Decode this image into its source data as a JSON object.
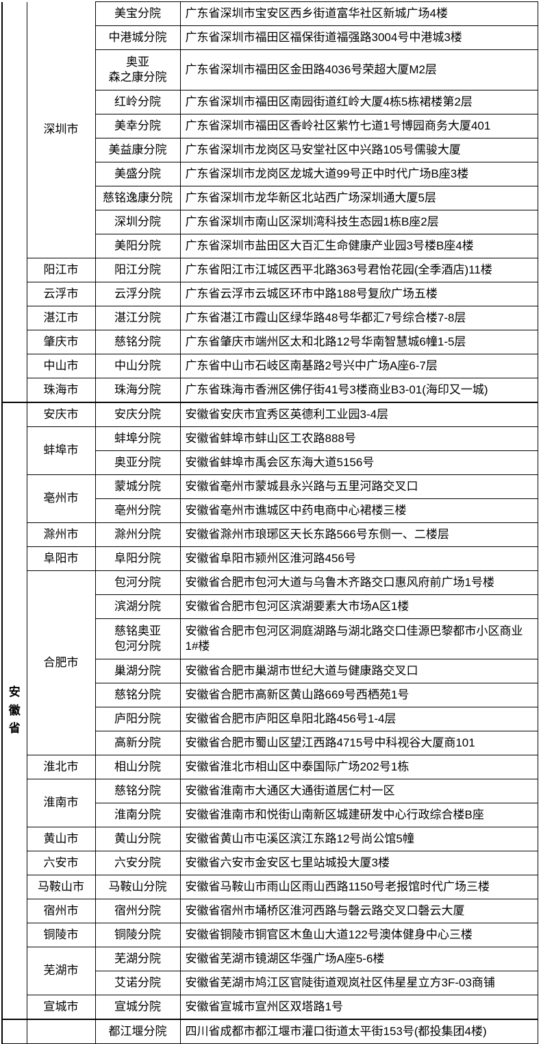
{
  "table": {
    "sections": [
      {
        "province": "",
        "cities": [
          {
            "name": "深圳市",
            "branches": [
              {
                "name": "美宝分院",
                "address": "广东省深圳市宝安区西乡街道富华社区新城广场4楼"
              },
              {
                "name": "中港城分院",
                "address": "广东省深圳市福田区福保街道福强路3004号中港城3楼"
              },
              {
                "name": "奥亚\n森之康分院",
                "address": "广东省深圳市福田区金田路4036号荣超大厦M2层"
              },
              {
                "name": "红岭分院",
                "address": "广东省深圳市福田区南园街道红岭大厦4栋5栋裙楼第2层"
              },
              {
                "name": "美幸分院",
                "address": "广东省深圳市福田区香岭社区紫竹七道1号博园商务大厦401"
              },
              {
                "name": "美益康分院",
                "address": "广东省深圳市龙岗区马安堂社区中兴路105号儒骏大厦"
              },
              {
                "name": "美盛分院",
                "address": "广东省深圳市龙岗区龙城大道99号正中时代广场B座3楼"
              },
              {
                "name": "慈铭逸康分院",
                "address": "广东省深圳市龙华新区北站西广场深圳通大厦5层"
              },
              {
                "name": "深圳分院",
                "address": "广东省深圳市南山区深圳湾科技生态园1栋B座2层"
              },
              {
                "name": "美阳分院",
                "address": "广东省深圳市盐田区大百汇生命健康产业园3号楼B座4楼"
              }
            ]
          },
          {
            "name": "阳江市",
            "branches": [
              {
                "name": "阳江分院",
                "address": "广东省阳江市江城区西平北路363号君怡花园(全季酒店)11楼"
              }
            ]
          },
          {
            "name": "云浮市",
            "branches": [
              {
                "name": "云浮分院",
                "address": "广东省云浮市云城区环市中路188号复欣广场五楼"
              }
            ]
          },
          {
            "name": "湛江市",
            "branches": [
              {
                "name": "湛江分院",
                "address": "广东省湛江市霞山区绿华路48号华都汇7号综合楼7-8层"
              }
            ]
          },
          {
            "name": "肇庆市",
            "branches": [
              {
                "name": "慈铭分院",
                "address": "广东省肇庆市端州区太和北路12号华南智慧城6幢1-5层"
              }
            ]
          },
          {
            "name": "中山市",
            "branches": [
              {
                "name": "中山分院",
                "address": "广东省中山市石岐区南基路2号兴中广场A座6-7层"
              }
            ]
          },
          {
            "name": "珠海市",
            "branches": [
              {
                "name": "珠海分院",
                "address": "广东省珠海市香洲区佛仔街41号3楼商业B3-01(海印又一城)"
              }
            ]
          }
        ]
      },
      {
        "province": "安徽省",
        "cities": [
          {
            "name": "安庆市",
            "branches": [
              {
                "name": "安庆分院",
                "address": "安徽省安庆市宜秀区英德利工业园3-4层"
              }
            ]
          },
          {
            "name": "蚌埠市",
            "branches": [
              {
                "name": "蚌埠分院",
                "address": "安徽省蚌埠市蚌山区工农路888号"
              },
              {
                "name": "奥亚分院",
                "address": "安徽省蚌埠市禹会区东海大道5156号"
              }
            ]
          },
          {
            "name": "亳州市",
            "branches": [
              {
                "name": "蒙城分院",
                "address": "安徽省亳州市蒙城县永兴路与五里河路交叉口"
              },
              {
                "name": "亳州分院",
                "address": "安徽省亳州市谯城区中药电商中心裙楼三楼"
              }
            ]
          },
          {
            "name": "滁州市",
            "branches": [
              {
                "name": "滁州分院",
                "address": "安徽省滁州市琅琊区天长东路566号东侧一、二楼层"
              }
            ]
          },
          {
            "name": "阜阳市",
            "branches": [
              {
                "name": "阜阳分院",
                "address": "安徽省阜阳市颍州区淮河路456号"
              }
            ]
          },
          {
            "name": "合肥市",
            "branches": [
              {
                "name": "包河分院",
                "address": "安徽省合肥市包河大道与乌鲁木齐路交口惠风府前广场1号楼"
              },
              {
                "name": "滨湖分院",
                "address": "安徽省合肥市包河区滨湖要素大市场A区1楼"
              },
              {
                "name": "慈铭奥亚\n包河分院",
                "address": "安徽省合肥市包河区洞庭湖路与湖北路交口佳源巴黎都市小区商业1#楼"
              },
              {
                "name": "巢湖分院",
                "address": "安徽省合肥市巢湖市世纪大道与健康路交叉口"
              },
              {
                "name": "慈铭分院",
                "address": "安徽省合肥市高新区黄山路669号西栖苑1号"
              },
              {
                "name": "庐阳分院",
                "address": "安徽省合肥市庐阳区阜阳北路456号1-4层"
              },
              {
                "name": "高新分院",
                "address": "安徽省合肥市蜀山区望江西路4715号中科视谷大厦商101"
              }
            ]
          },
          {
            "name": "淮北市",
            "branches": [
              {
                "name": "相山分院",
                "address": "安徽省淮北市相山区中泰国际广场202号1栋"
              }
            ]
          },
          {
            "name": "淮南市",
            "branches": [
              {
                "name": "慈铭分院",
                "address": "安徽省淮南市大通区大通街道居仁村一区"
              },
              {
                "name": "淮南分院",
                "address": "安徽省淮南市和悦街山南新区城建研发中心行政综合楼B座"
              }
            ]
          },
          {
            "name": "黄山市",
            "branches": [
              {
                "name": "黄山分院",
                "address": "安徽省黄山市屯溪区滨江东路12号尚公馆5幢"
              }
            ]
          },
          {
            "name": "六安市",
            "branches": [
              {
                "name": "六安分院",
                "address": "安徽省六安市金安区七里站城投大厦3楼"
              }
            ]
          },
          {
            "name": "马鞍山市",
            "branches": [
              {
                "name": "马鞍山分院",
                "address": "安徽省马鞍山市雨山区雨山西路1150号老报馆时代广场三楼"
              }
            ]
          },
          {
            "name": "宿州市",
            "branches": [
              {
                "name": "宿州分院",
                "address": "安徽省宿州市埇桥区淮河西路与磬云路交叉口磬云大厦"
              }
            ]
          },
          {
            "name": "铜陵市",
            "branches": [
              {
                "name": "铜陵分院",
                "address": "安徽省铜陵市铜官区木鱼山大道122号澳体健身中心三楼"
              }
            ]
          },
          {
            "name": "芜湖市",
            "branches": [
              {
                "name": "芜湖分院",
                "address": "安徽省芜湖市镜湖区华强广场A座5-6楼"
              },
              {
                "name": "艾诺分院",
                "address": "安徽省芜湖市鸠江区官陡街道观岚社区伟星星立方3F-03商铺"
              }
            ]
          },
          {
            "name": "宣城市",
            "branches": [
              {
                "name": "宣城分院",
                "address": "安徽省宣城市宣州区双塔路1号"
              }
            ]
          }
        ]
      },
      {
        "province": "",
        "cities": [
          {
            "name": "",
            "branches": [
              {
                "name": "都江堰分院",
                "address": "四川省成都市都江堰市灌口街道太平街153号(都投集团4楼)"
              }
            ]
          }
        ]
      }
    ]
  },
  "colors": {
    "border": "#000000",
    "text": "#000000",
    "background": "#ffffff"
  }
}
